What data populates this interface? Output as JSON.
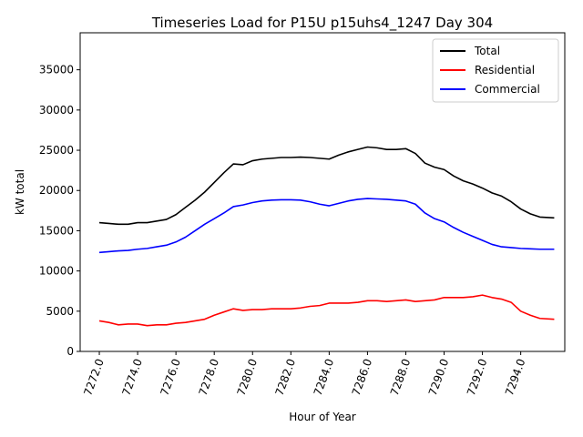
{
  "chart_data": {
    "type": "line",
    "title": "Timeseries Load for P15U p15uhs4_1247  Day 304",
    "xlabel": "Hour of Year",
    "ylabel": "kW total",
    "xlim": [
      7271,
      7296.3
    ],
    "ylim": [
      0,
      39600
    ],
    "xticks": [
      7272,
      7274,
      7276,
      7278,
      7280,
      7282,
      7284,
      7286,
      7288,
      7290,
      7292,
      7294
    ],
    "xtick_labels": [
      "7272.0",
      "7274.0",
      "7276.0",
      "7278.0",
      "7280.0",
      "7282.0",
      "7284.0",
      "7286.0",
      "7288.0",
      "7290.0",
      "7292.0",
      "7294.0"
    ],
    "yticks": [
      0,
      5000,
      10000,
      15000,
      20000,
      25000,
      30000,
      35000
    ],
    "ytick_labels": [
      "0",
      "5000",
      "10000",
      "15000",
      "20000",
      "25000",
      "30000",
      "35000"
    ],
    "grid": false,
    "legend_position": "top-right",
    "x": [
      7272,
      7272.5,
      7273,
      7273.5,
      7274,
      7274.5,
      7275,
      7275.5,
      7276,
      7276.5,
      7277,
      7277.5,
      7278,
      7278.5,
      7279,
      7279.5,
      7280,
      7280.5,
      7281,
      7281.5,
      7282,
      7282.5,
      7283,
      7283.5,
      7284,
      7284.5,
      7285,
      7285.5,
      7286,
      7286.5,
      7287,
      7287.5,
      7288,
      7288.5,
      7289,
      7289.5,
      7290,
      7290.5,
      7291,
      7291.5,
      7292,
      7292.5,
      7293,
      7293.5,
      7294,
      7294.5,
      7295,
      7295.75
    ],
    "series": [
      {
        "name": "Total",
        "color": "#000000",
        "values": [
          16000,
          15900,
          15800,
          15800,
          16000,
          16000,
          16200,
          16400,
          17000,
          17900,
          18800,
          19800,
          21000,
          22200,
          23300,
          23200,
          23700,
          23900,
          24000,
          24100,
          24100,
          24150,
          24100,
          24000,
          23900,
          24400,
          24800,
          25100,
          25400,
          25300,
          25100,
          25100,
          25200,
          24600,
          23400,
          22900,
          22600,
          21800,
          21200,
          20800,
          20300,
          19700,
          19300,
          18600,
          17700,
          17100,
          16700,
          16600
        ]
      },
      {
        "name": "Residential",
        "color": "#ff0000",
        "values": [
          3800,
          3600,
          3300,
          3400,
          3400,
          3200,
          3300,
          3300,
          3500,
          3600,
          3800,
          4000,
          4500,
          4900,
          5300,
          5100,
          5200,
          5200,
          5300,
          5300,
          5300,
          5400,
          5600,
          5700,
          6000,
          6000,
          6000,
          6100,
          6300,
          6300,
          6200,
          6300,
          6400,
          6200,
          6300,
          6400,
          6700,
          6700,
          6700,
          6800,
          7000,
          6700,
          6500,
          6100,
          5000,
          4500,
          4100,
          4000
        ]
      },
      {
        "name": "Commercial",
        "color": "#0000ff",
        "values": [
          12300,
          12400,
          12500,
          12550,
          12700,
          12800,
          13000,
          13200,
          13600,
          14200,
          15000,
          15800,
          16500,
          17200,
          18000,
          18200,
          18500,
          18700,
          18800,
          18850,
          18850,
          18800,
          18600,
          18300,
          18100,
          18400,
          18700,
          18900,
          19000,
          18950,
          18900,
          18800,
          18700,
          18300,
          17200,
          16500,
          16100,
          15400,
          14800,
          14300,
          13800,
          13300,
          13000,
          12900,
          12800,
          12750,
          12700,
          12700
        ]
      }
    ]
  }
}
